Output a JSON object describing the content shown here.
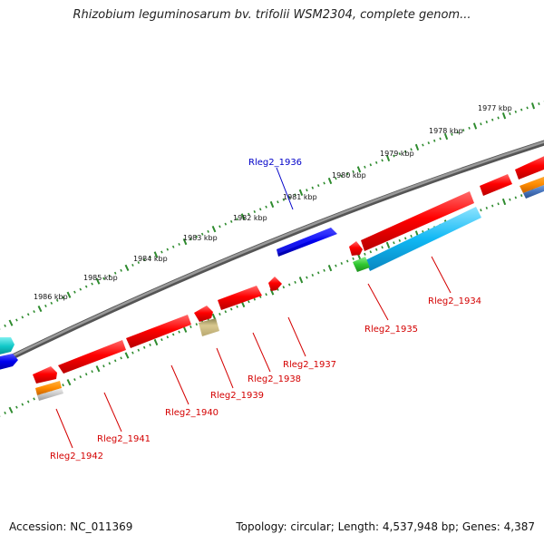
{
  "title": "Rhizobium leguminosarum bv. trifolii WSM2304, complete genom...",
  "footer": {
    "accession": "Accession: NC_011369",
    "topology": "Topology: circular; Length: 4,537,948 bp; Genes: 4,387"
  },
  "scale_labels": [
    "1977 kbp",
    "1978 kbp",
    "1979 kbp",
    "1980 kbp",
    "1981 kbp",
    "1982 kbp",
    "1983 kbp",
    "1984 kbp",
    "1985 kbp",
    "1986 kbp"
  ],
  "gene_labels": [
    "Rleg2_1936",
    "Rleg2_1934",
    "Rleg2_1935",
    "Rleg2_1937",
    "Rleg2_1938",
    "Rleg2_1939",
    "Rleg2_1940",
    "Rleg2_1941",
    "Rleg2_1942"
  ],
  "colors": {
    "backbone": "#7a7a7a",
    "tick": "#2e8b2e",
    "forward_gene": "#0000e0",
    "reverse_gene": "#ff0000",
    "cyan_gene": "#00b4f0",
    "green_gene": "#33cc33",
    "khaki_gene": "#c8b878",
    "orange_gene": "#ff8c00",
    "label_red": "#d40000",
    "label_blue": "#0000c8"
  }
}
